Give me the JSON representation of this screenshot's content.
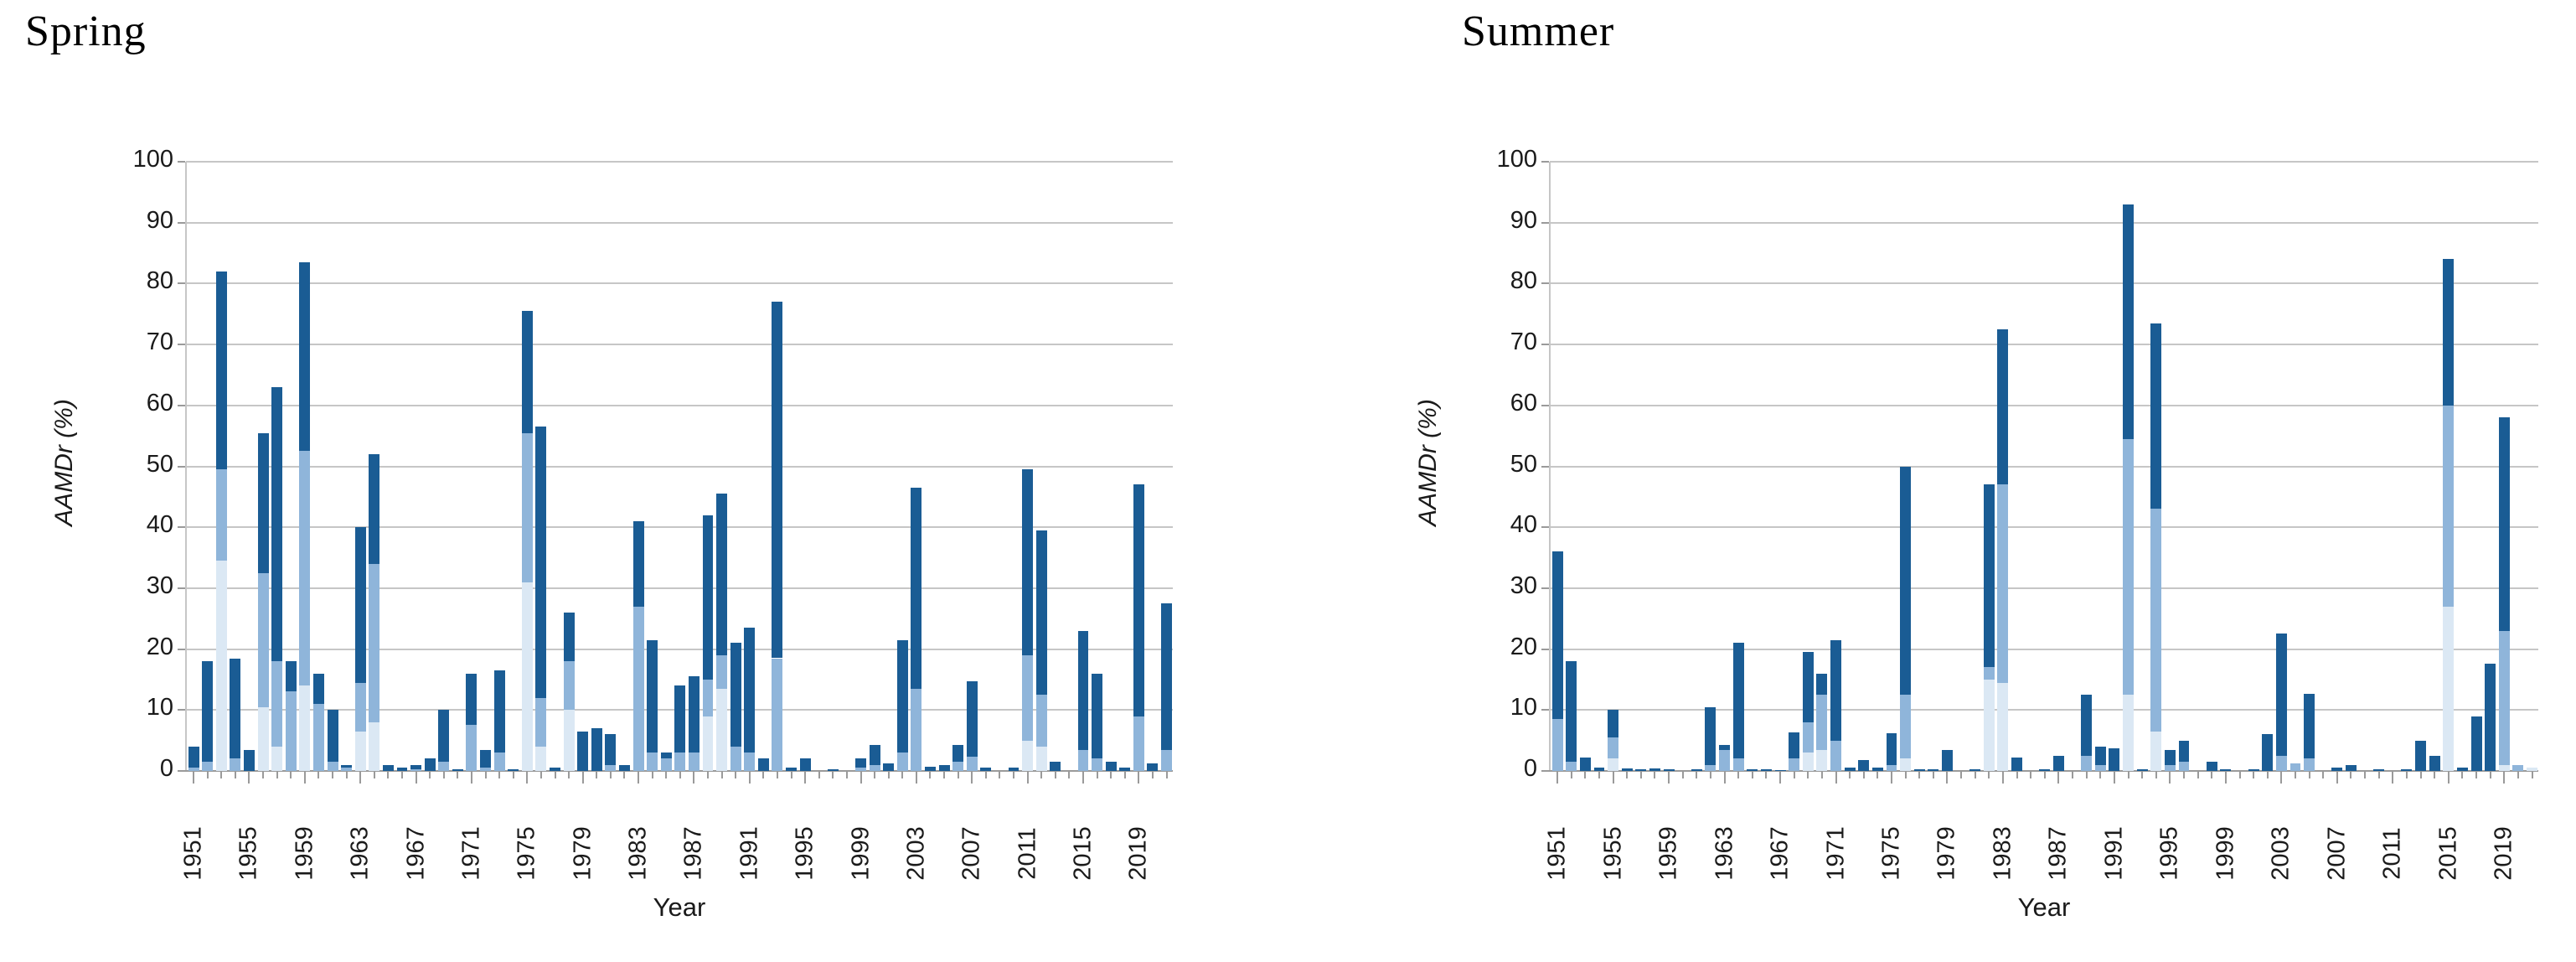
{
  "figure": {
    "background": "#ffffff",
    "text_color": "#1a1a1a",
    "gridline_color": "#c6c6c6",
    "axis_color": "#9a9a9a"
  },
  "chart_data": [
    {
      "type": "bar",
      "stacked": true,
      "title": "Spring",
      "xlabel": "Year",
      "ylabel": "AAMDr (%)",
      "ylim": [
        0,
        100
      ],
      "ytick_step": 10,
      "grid": true,
      "legend": "none",
      "x_start": 1951,
      "x_end": 2021,
      "xtick_labels": [
        "1951",
        "1955",
        "1959",
        "1963",
        "1967",
        "1971",
        "1975",
        "1979",
        "1983",
        "1987",
        "1991",
        "1995",
        "1999",
        "2003",
        "2007",
        "2011",
        "2015",
        "2019"
      ],
      "series": [
        {
          "name": "bottom-pale-blue",
          "color": "#dbe8f4",
          "values": [
            0,
            0,
            34.5,
            0,
            0,
            10.5,
            4,
            0,
            14,
            0,
            0,
            0,
            6.5,
            8,
            0,
            0,
            0,
            0,
            0,
            0,
            0,
            0,
            0,
            0,
            31,
            4,
            0,
            10,
            0,
            0,
            0,
            0,
            0,
            0,
            0,
            0,
            0,
            9,
            13.5,
            0,
            0,
            0,
            0,
            0,
            0,
            0,
            0,
            0,
            0,
            0,
            0,
            0,
            0,
            0,
            0,
            0,
            0,
            0,
            0,
            0,
            5,
            4,
            0,
            0,
            0,
            0,
            0,
            0,
            0,
            0,
            0
          ]
        },
        {
          "name": "middle-medium-blue",
          "color": "#8fb5da",
          "values": [
            0.5,
            1.5,
            15,
            2,
            0,
            22,
            14,
            13,
            38.5,
            11,
            1.5,
            0.5,
            8,
            26,
            0,
            0,
            0.3,
            0,
            1.5,
            0,
            7.5,
            0.5,
            3,
            0,
            24.5,
            8,
            0,
            8,
            0,
            0,
            1,
            0,
            27,
            3,
            2,
            3,
            3,
            6,
            5.5,
            4,
            3,
            0,
            18.5,
            0,
            0,
            0,
            0,
            0,
            0.5,
            1,
            0,
            3,
            13.5,
            0,
            0,
            1.5,
            2.3,
            0,
            0,
            0,
            14,
            8.5,
            0,
            0,
            3.5,
            2,
            0,
            0,
            9,
            0,
            3.5
          ]
        },
        {
          "name": "top-dark-blue",
          "color": "#1a5c94",
          "values": [
            3.5,
            16.5,
            32.5,
            16.5,
            3.5,
            23,
            45,
            5,
            31,
            5,
            8.5,
            0.5,
            25.5,
            18,
            1,
            0.5,
            0.7,
            2,
            8.5,
            0.3,
            8.5,
            3,
            13.5,
            0.3,
            20,
            44.5,
            0.5,
            8,
            6.5,
            7,
            5,
            1,
            14,
            18.5,
            1,
            11,
            12.5,
            27,
            26.5,
            17,
            20.5,
            2,
            58.5,
            0.5,
            2,
            0,
            0.3,
            0,
            1.5,
            3.3,
            1.3,
            18.5,
            33,
            0.7,
            1,
            2.7,
            12.4,
            0.5,
            0,
            0.5,
            30.5,
            27,
            1.5,
            0,
            19.5,
            14,
            1.5,
            0.5,
            38,
            1.2,
            24
          ]
        }
      ]
    },
    {
      "type": "bar",
      "stacked": true,
      "title": "Summer",
      "xlabel": "Year",
      "ylabel": "AAMDr (%)",
      "ylim": [
        0,
        100
      ],
      "ytick_step": 10,
      "grid": true,
      "legend": "none",
      "x_start": 1951,
      "x_end": 2021,
      "xtick_labels": [
        "1951",
        "1955",
        "1959",
        "1963",
        "1967",
        "1971",
        "1975",
        "1979",
        "1983",
        "1987",
        "1991",
        "1995",
        "1999",
        "2003",
        "2007",
        "2011",
        "2015",
        "2019"
      ],
      "series": [
        {
          "name": "bottom-pale-blue",
          "color": "#dbe8f4",
          "values": [
            0,
            0,
            0,
            0,
            2,
            0,
            0,
            0,
            0,
            0,
            0,
            0,
            0,
            0,
            0,
            0,
            0,
            0,
            3,
            3.5,
            0,
            0,
            0,
            0,
            0,
            2,
            0,
            0,
            0,
            0,
            0,
            15,
            14.5,
            0,
            0,
            0,
            0,
            0,
            0,
            0,
            0,
            12.5,
            0,
            6.5,
            0,
            0,
            0,
            0,
            0,
            0,
            0,
            0,
            0,
            0,
            0,
            0,
            0,
            0,
            0,
            0,
            0,
            0,
            0,
            0,
            27,
            0,
            0,
            0,
            1,
            0,
            0.5
          ]
        },
        {
          "name": "middle-medium-blue",
          "color": "#8fb5da",
          "values": [
            8.5,
            1.5,
            0,
            0,
            3.5,
            0,
            0,
            0,
            0,
            0,
            0,
            1,
            3.5,
            2,
            0,
            0,
            0,
            2,
            5,
            9,
            5,
            0,
            0,
            0,
            1,
            10.5,
            0,
            0,
            0,
            0,
            0,
            2,
            32.5,
            0,
            0,
            0,
            0,
            0,
            2.5,
            1,
            0,
            42,
            0,
            36.5,
            1,
            1.5,
            0,
            0,
            0,
            0,
            0,
            0,
            2.5,
            1.2,
            2,
            0,
            0,
            0,
            0,
            0,
            0,
            0,
            0,
            0,
            33,
            0,
            0,
            0,
            22,
            1,
            0
          ]
        },
        {
          "name": "top-dark-blue",
          "color": "#1a5c94",
          "values": [
            27.5,
            16.5,
            2.2,
            0.5,
            4.5,
            0.4,
            0.3,
            0.4,
            0.3,
            0,
            0.3,
            9.5,
            0.7,
            19,
            0.3,
            0.3,
            0.2,
            4.3,
            11.5,
            3.5,
            16.5,
            0.5,
            1.8,
            0.5,
            5.2,
            37.5,
            0.3,
            0.3,
            3.5,
            0,
            0.3,
            30,
            25.5,
            2.2,
            0,
            0.3,
            2.5,
            0,
            10,
            3,
            3.7,
            38.5,
            0.3,
            30.5,
            2.5,
            3.5,
            0,
            1.5,
            0.3,
            0,
            0.3,
            6,
            20,
            0,
            10.7,
            0,
            0.5,
            1,
            0,
            0.3,
            0,
            0.3,
            5,
            2.5,
            24,
            0.5,
            9,
            17.6,
            35,
            0,
            0
          ]
        }
      ]
    }
  ],
  "axis": {
    "ytick_values": [
      "0",
      "10",
      "20",
      "30",
      "40",
      "50",
      "60",
      "70",
      "80",
      "90",
      "100"
    ]
  }
}
